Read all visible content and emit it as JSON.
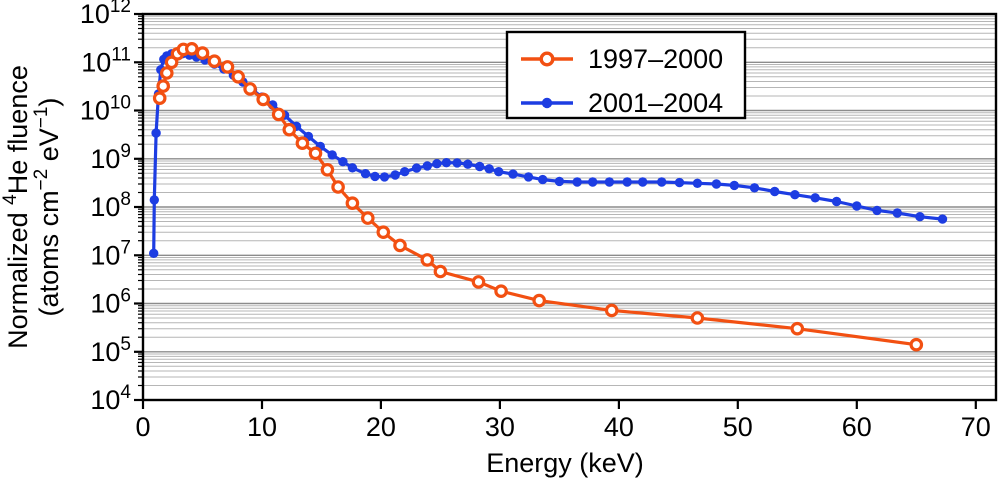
{
  "figure": {
    "xlabel": "Energy (keV)",
    "ylabel_line1": "Normalized ⁴He fluence",
    "ylabel_line2": "(atoms cm⁻² eV⁻¹)",
    "ylabel_rich": {
      "line1": [
        {
          "t": "Normalized "
        },
        {
          "t": "4",
          "sup": true
        },
        {
          "t": "He fluence"
        }
      ],
      "line2": [
        {
          "t": "(atoms cm"
        },
        {
          "t": "−2",
          "sup": true
        },
        {
          "t": " eV",
          "sup": false
        },
        {
          "t": "−1",
          "sup": true
        },
        {
          "t": ")"
        }
      ]
    }
  },
  "colors": {
    "series_1997_2000": "#f25012",
    "series_2001_2004": "#1d3de2",
    "grid_minor": "#b6b6b6",
    "grid_decade": "#8c8c8c",
    "axis": "#000000",
    "background": "#ffffff"
  },
  "chart_data": {
    "type": "line",
    "title": "",
    "xlabel": "Energy (keV)",
    "ylabel": "Normalized ⁴He fluence (atoms cm⁻² eV⁻¹)",
    "x_axis": {
      "min": 0,
      "max": 71.7,
      "ticks": [
        0,
        10,
        20,
        30,
        40,
        50,
        60,
        70
      ]
    },
    "y_axis": {
      "scale": "log",
      "min_exp": 4,
      "max_exp": 12,
      "tick_exponents": [
        4,
        5,
        6,
        7,
        8,
        9,
        10,
        11,
        12
      ]
    },
    "grid": "horizontal logarithmic minor gridlines, gray",
    "legend_position": "inset box upper right",
    "series": [
      {
        "name": "1997–2000",
        "color": "#f25012",
        "marker": "open-circle",
        "x": [
          1.4,
          1.7,
          2.0,
          2.4,
          2.9,
          3.4,
          4.1,
          5.0,
          6.0,
          7.1,
          8.0,
          9.0,
          10.1,
          11.4,
          12.3,
          13.4,
          14.5,
          15.5,
          16.4,
          17.6,
          18.9,
          20.2,
          21.6,
          23.9,
          25.0,
          28.2,
          30.1,
          33.3,
          39.4,
          46.6,
          55.0,
          65.0
        ],
        "y": [
          18000000000.0,
          32000000000.0,
          60000000000.0,
          100000000000.0,
          150000000000.0,
          185000000000.0,
          190000000000.0,
          155000000000.0,
          105000000000.0,
          80000000000.0,
          50000000000.0,
          28000000000.0,
          17000000000.0,
          8300000000.0,
          4000000000.0,
          2100000000.0,
          1300000000.0,
          590000000.0,
          260000000.0,
          120000000.0,
          59000000.0,
          30000000.0,
          16000000.0,
          8000000.0,
          4600000.0,
          2800000.0,
          1800000.0,
          1150000.0,
          720000.0,
          500000.0,
          300000.0,
          140000.0
        ]
      },
      {
        "name": "2001–2004",
        "color": "#1d3de2",
        "marker": "filled-circle",
        "x": [
          0.9,
          0.95,
          1.1,
          1.3,
          1.5,
          1.75,
          2.0,
          2.4,
          2.8,
          3.3,
          3.9,
          4.5,
          5.2,
          6.0,
          6.8,
          7.6,
          8.4,
          9.2,
          10.0,
          10.9,
          11.9,
          12.9,
          13.9,
          14.9,
          15.9,
          16.8,
          17.6,
          18.7,
          19.5,
          20.3,
          21.2,
          22.0,
          23.0,
          23.9,
          24.7,
          25.5,
          26.4,
          27.3,
          28.3,
          29.1,
          29.9,
          31.1,
          32.4,
          33.6,
          35.0,
          36.5,
          37.8,
          39.2,
          40.7,
          42.0,
          43.6,
          45.1,
          46.6,
          48.2,
          49.7,
          51.4,
          53.1,
          54.8,
          56.5,
          58.3,
          60.0,
          61.7,
          63.4,
          65.3,
          67.2
        ],
        "y": [
          11000000.0,
          140000000.0,
          3400000000.0,
          22000000000.0,
          70000000000.0,
          115000000000.0,
          135000000000.0,
          150000000000.0,
          155000000000.0,
          150000000000.0,
          140000000000.0,
          128000000000.0,
          112000000000.0,
          92000000000.0,
          72000000000.0,
          54000000000.0,
          39000000000.0,
          27000000000.0,
          19000000000.0,
          13000000000.0,
          8000000000.0,
          4700000000.0,
          2900000000.0,
          1800000000.0,
          1200000000.0,
          870000000.0,
          650000000.0,
          490000000.0,
          430000000.0,
          420000000.0,
          460000000.0,
          540000000.0,
          640000000.0,
          710000000.0,
          790000000.0,
          830000000.0,
          820000000.0,
          770000000.0,
          690000000.0,
          620000000.0,
          540000000.0,
          480000000.0,
          420000000.0,
          370000000.0,
          340000000.0,
          330000000.0,
          330000000.0,
          330000000.0,
          330000000.0,
          330000000.0,
          330000000.0,
          320000000.0,
          310000000.0,
          300000000.0,
          280000000.0,
          250000000.0,
          210000000.0,
          180000000.0,
          155000000.0,
          130000000.0,
          105000000.0,
          85000000.0,
          75000000.0,
          63000000.0,
          56000000.0
        ]
      }
    ]
  }
}
